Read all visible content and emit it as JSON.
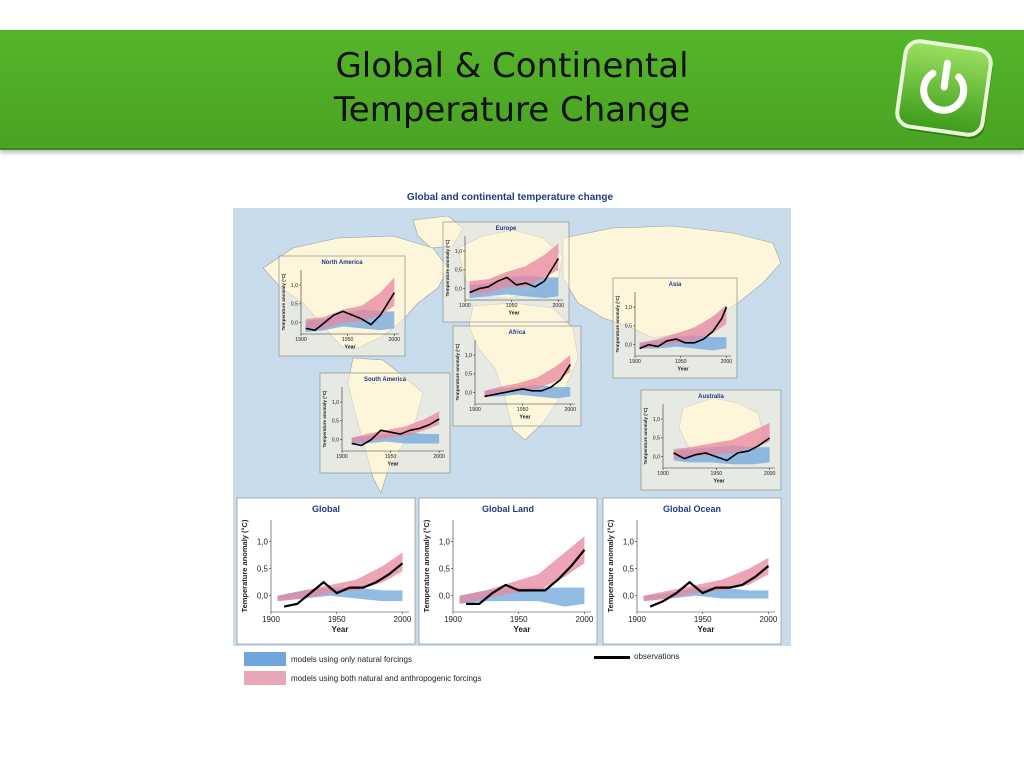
{
  "slide": {
    "title_line1": "Global & Continental",
    "title_line2": "Temperature Change"
  },
  "figure": {
    "title": "Global and continental temperature change",
    "colors": {
      "natural": "#6fa6dc",
      "anthropogenic": "#e8869f",
      "observations": "#000000",
      "land": "#fdf6da",
      "ocean": "#c9dcec"
    },
    "legend": {
      "natural_label": "models using only natural forcings",
      "anthropogenic_label": "models using both natural and anthropogenic forcings",
      "observations_label": "observations"
    }
  },
  "chart_data": [
    {
      "type": "area",
      "title": "North America",
      "ylabel": "Temperature anomaly (°C)",
      "xlabel": "Year",
      "x_ticks": [
        1900,
        1950,
        2000
      ],
      "y_ticks": [
        "0,0",
        "0,5",
        "1,0"
      ],
      "ylim": [
        -0.3,
        1.4
      ],
      "xlim": [
        1900,
        2005
      ],
      "obs_x": [
        1905,
        1915,
        1925,
        1935,
        1945,
        1955,
        1965,
        1975,
        1985,
        1995,
        2000
      ],
      "obs_y": [
        -0.15,
        -0.2,
        0.0,
        0.2,
        0.3,
        0.2,
        0.1,
        -0.05,
        0.2,
        0.6,
        0.8
      ],
      "model_x": [
        1905,
        1925,
        1945,
        1965,
        1985,
        2000
      ],
      "natural_low": [
        -0.25,
        -0.2,
        -0.1,
        -0.15,
        -0.2,
        -0.15
      ],
      "natural_high": [
        0.05,
        0.1,
        0.25,
        0.35,
        0.3,
        0.3
      ],
      "anthro_low": [
        -0.2,
        -0.15,
        0.0,
        0.05,
        0.2,
        0.45
      ],
      "anthro_high": [
        0.1,
        0.15,
        0.35,
        0.45,
        0.8,
        1.2
      ]
    },
    {
      "type": "area",
      "title": "Europe",
      "ylabel": "Temperature anomaly (°C)",
      "xlabel": "Year",
      "x_ticks": [
        1900,
        1950,
        2000
      ],
      "y_ticks": [
        "0,0",
        "0,5",
        "1,0"
      ],
      "ylim": [
        -0.3,
        1.4
      ],
      "xlim": [
        1900,
        2005
      ],
      "obs_x": [
        1905,
        1915,
        1925,
        1935,
        1945,
        1955,
        1965,
        1975,
        1985,
        1995,
        2000
      ],
      "obs_y": [
        -0.1,
        0.0,
        0.05,
        0.2,
        0.3,
        0.1,
        0.15,
        0.05,
        0.2,
        0.6,
        0.8
      ],
      "model_x": [
        1905,
        1925,
        1945,
        1965,
        1985,
        2000
      ],
      "natural_low": [
        -0.25,
        -0.2,
        -0.15,
        -0.2,
        -0.25,
        -0.2
      ],
      "natural_high": [
        0.1,
        0.15,
        0.3,
        0.35,
        0.3,
        0.3
      ],
      "anthro_low": [
        -0.15,
        -0.1,
        0.05,
        0.05,
        0.3,
        0.5
      ],
      "anthro_high": [
        0.2,
        0.25,
        0.45,
        0.6,
        0.9,
        1.2
      ]
    },
    {
      "type": "area",
      "title": "Asia",
      "ylabel": "Temperature anomaly (°C)",
      "xlabel": "Year",
      "x_ticks": [
        1900,
        1950,
        2000
      ],
      "y_ticks": [
        "0,0",
        "0,5",
        "1,0"
      ],
      "ylim": [
        -0.3,
        1.4
      ],
      "xlim": [
        1900,
        2005
      ],
      "obs_x": [
        1905,
        1915,
        1925,
        1935,
        1945,
        1955,
        1965,
        1975,
        1985,
        1995,
        2000
      ],
      "obs_y": [
        -0.1,
        0.0,
        -0.05,
        0.1,
        0.15,
        0.05,
        0.05,
        0.15,
        0.35,
        0.7,
        1.0
      ],
      "model_x": [
        1905,
        1925,
        1945,
        1965,
        1985,
        2000
      ],
      "natural_low": [
        -0.1,
        -0.1,
        -0.05,
        -0.1,
        -0.15,
        -0.1
      ],
      "natural_high": [
        0.05,
        0.1,
        0.2,
        0.25,
        0.2,
        0.2
      ],
      "anthro_low": [
        -0.1,
        -0.05,
        0.05,
        0.1,
        0.3,
        0.55
      ],
      "anthro_high": [
        0.05,
        0.15,
        0.3,
        0.45,
        0.75,
        1.05
      ]
    },
    {
      "type": "area",
      "title": "Africa",
      "ylabel": "Temperature anomaly (°C)",
      "xlabel": "Year",
      "x_ticks": [
        1900,
        1950,
        2000
      ],
      "y_ticks": [
        "0,0",
        "0,5",
        "1,0"
      ],
      "ylim": [
        -0.3,
        1.4
      ],
      "xlim": [
        1900,
        2005
      ],
      "obs_x": [
        1910,
        1920,
        1930,
        1940,
        1950,
        1960,
        1970,
        1980,
        1990,
        2000
      ],
      "obs_y": [
        -0.1,
        -0.05,
        0.0,
        0.05,
        0.1,
        0.05,
        0.05,
        0.15,
        0.35,
        0.75
      ],
      "model_x": [
        1910,
        1925,
        1945,
        1965,
        1985,
        2000
      ],
      "natural_low": [
        -0.1,
        -0.1,
        -0.05,
        -0.1,
        -0.15,
        -0.1
      ],
      "natural_high": [
        0.05,
        0.1,
        0.15,
        0.2,
        0.15,
        0.15
      ],
      "anthro_low": [
        -0.1,
        -0.05,
        0.05,
        0.1,
        0.3,
        0.55
      ],
      "anthro_high": [
        0.05,
        0.15,
        0.25,
        0.4,
        0.7,
        1.0
      ]
    },
    {
      "type": "area",
      "title": "South America",
      "ylabel": "Temperature anomaly (°C)",
      "xlabel": "Year",
      "x_ticks": [
        1900,
        1950,
        2000
      ],
      "y_ticks": [
        "0,0",
        "0,5",
        "1,0"
      ],
      "ylim": [
        -0.3,
        1.4
      ],
      "xlim": [
        1900,
        2005
      ],
      "obs_x": [
        1910,
        1920,
        1930,
        1940,
        1950,
        1960,
        1970,
        1980,
        1990,
        2000
      ],
      "obs_y": [
        -0.1,
        -0.15,
        0.0,
        0.25,
        0.2,
        0.15,
        0.25,
        0.3,
        0.4,
        0.55
      ],
      "model_x": [
        1910,
        1925,
        1945,
        1965,
        1985,
        2000
      ],
      "natural_low": [
        -0.1,
        -0.1,
        -0.05,
        -0.1,
        -0.1,
        -0.1
      ],
      "natural_high": [
        0.05,
        0.1,
        0.15,
        0.2,
        0.15,
        0.15
      ],
      "anthro_low": [
        -0.1,
        -0.05,
        0.05,
        0.1,
        0.25,
        0.4
      ],
      "anthro_high": [
        0.05,
        0.15,
        0.25,
        0.35,
        0.55,
        0.75
      ]
    },
    {
      "type": "area",
      "title": "Australia",
      "ylabel": "Temperature anomaly (°C)",
      "xlabel": "Year",
      "x_ticks": [
        1900,
        1950,
        2000
      ],
      "y_ticks": [
        "0,0",
        "0,5",
        "1,0"
      ],
      "ylim": [
        -0.3,
        1.4
      ],
      "xlim": [
        1900,
        2005
      ],
      "obs_x": [
        1910,
        1920,
        1930,
        1940,
        1950,
        1960,
        1970,
        1980,
        1990,
        2000
      ],
      "obs_y": [
        0.1,
        -0.05,
        0.05,
        0.1,
        0.0,
        -0.1,
        0.1,
        0.15,
        0.3,
        0.5
      ],
      "model_x": [
        1910,
        1925,
        1945,
        1965,
        1985,
        2000
      ],
      "natural_low": [
        -0.1,
        -0.15,
        -0.15,
        -0.2,
        -0.2,
        -0.15
      ],
      "natural_high": [
        0.15,
        0.2,
        0.25,
        0.3,
        0.25,
        0.25
      ],
      "anthro_low": [
        -0.05,
        0.0,
        0.05,
        0.1,
        0.25,
        0.4
      ],
      "anthro_high": [
        0.2,
        0.25,
        0.35,
        0.45,
        0.7,
        0.9
      ]
    },
    {
      "type": "area",
      "title": "Global",
      "ylabel": "Temperature anomaly (°C)",
      "xlabel": "Year",
      "x_ticks": [
        1900,
        1950,
        2000
      ],
      "y_ticks": [
        "0,0",
        "0,5",
        "1,0"
      ],
      "ylim": [
        -0.3,
        1.4
      ],
      "xlim": [
        1900,
        2005
      ],
      "obs_x": [
        1910,
        1920,
        1930,
        1940,
        1950,
        1960,
        1970,
        1980,
        1990,
        2000
      ],
      "obs_y": [
        -0.2,
        -0.15,
        0.05,
        0.25,
        0.05,
        0.15,
        0.15,
        0.25,
        0.4,
        0.6
      ],
      "model_x": [
        1905,
        1925,
        1945,
        1965,
        1985,
        2000
      ],
      "natural_low": [
        -0.1,
        -0.05,
        0.0,
        -0.05,
        -0.1,
        -0.1
      ],
      "natural_high": [
        0.0,
        0.1,
        0.15,
        0.15,
        0.1,
        0.1
      ],
      "anthro_low": [
        -0.1,
        -0.05,
        0.05,
        0.1,
        0.25,
        0.45
      ],
      "anthro_high": [
        0.0,
        0.1,
        0.2,
        0.3,
        0.55,
        0.8
      ]
    },
    {
      "type": "area",
      "title": "Global Land",
      "ylabel": "Temperature anomaly (°C)",
      "xlabel": "Year",
      "x_ticks": [
        1900,
        1950,
        2000
      ],
      "y_ticks": [
        "0,0",
        "0,5",
        "1,0"
      ],
      "ylim": [
        -0.3,
        1.4
      ],
      "xlim": [
        1900,
        2005
      ],
      "obs_x": [
        1910,
        1920,
        1930,
        1940,
        1950,
        1960,
        1970,
        1980,
        1990,
        2000
      ],
      "obs_y": [
        -0.15,
        -0.15,
        0.05,
        0.2,
        0.1,
        0.1,
        0.1,
        0.3,
        0.55,
        0.85
      ],
      "model_x": [
        1905,
        1925,
        1945,
        1965,
        1985,
        2000
      ],
      "natural_low": [
        -0.15,
        -0.1,
        -0.1,
        -0.1,
        -0.2,
        -0.15
      ],
      "natural_high": [
        0.0,
        0.1,
        0.15,
        0.15,
        0.15,
        0.15
      ],
      "anthro_low": [
        -0.15,
        -0.05,
        0.05,
        0.1,
        0.35,
        0.6
      ],
      "anthro_high": [
        0.0,
        0.1,
        0.25,
        0.4,
        0.8,
        1.1
      ]
    },
    {
      "type": "area",
      "title": "Global Ocean",
      "ylabel": "Temperature anomaly (°C)",
      "xlabel": "Year",
      "x_ticks": [
        1900,
        1950,
        2000
      ],
      "y_ticks": [
        "0,0",
        "0,5",
        "1,0"
      ],
      "ylim": [
        -0.3,
        1.4
      ],
      "xlim": [
        1900,
        2005
      ],
      "obs_x": [
        1910,
        1920,
        1930,
        1940,
        1950,
        1960,
        1970,
        1980,
        1990,
        2000
      ],
      "obs_y": [
        -0.2,
        -0.1,
        0.05,
        0.25,
        0.05,
        0.15,
        0.15,
        0.2,
        0.35,
        0.55
      ],
      "model_x": [
        1905,
        1925,
        1945,
        1965,
        1985,
        2000
      ],
      "natural_low": [
        -0.1,
        -0.05,
        0.0,
        -0.05,
        -0.05,
        -0.05
      ],
      "natural_high": [
        0.0,
        0.05,
        0.15,
        0.15,
        0.1,
        0.1
      ],
      "anthro_low": [
        -0.1,
        -0.05,
        0.05,
        0.1,
        0.2,
        0.4
      ],
      "anthro_high": [
        0.0,
        0.1,
        0.2,
        0.3,
        0.5,
        0.7
      ]
    }
  ]
}
